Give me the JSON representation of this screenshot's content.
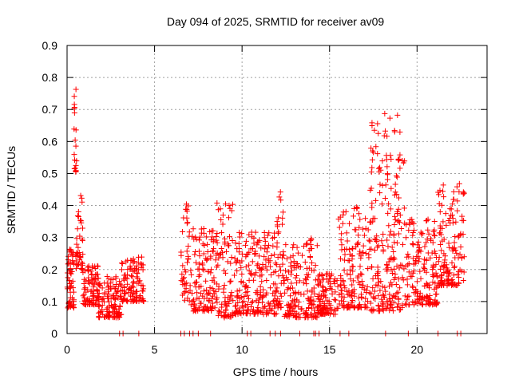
{
  "chart_data": {
    "type": "scatter",
    "title": "Day 094 of 2025, SRMTID for receiver av09",
    "xlabel": "GPS time / hours",
    "ylabel": "SRMTID / TECUs",
    "xlim": [
      0,
      24
    ],
    "ylim": [
      0,
      0.9
    ],
    "xticks": [
      0,
      5,
      10,
      15,
      20
    ],
    "yticks": [
      0,
      0.1,
      0.2,
      0.3,
      0.4,
      0.5,
      0.6,
      0.7,
      0.8,
      0.9
    ],
    "ytick_labels": [
      "0",
      "0.1",
      "0.2",
      "0.3",
      "0.4",
      "0.5",
      "0.6",
      "0.7",
      "0.8",
      "0.9"
    ],
    "grid": true,
    "marker": "+",
    "color": "#ff0000",
    "series": [
      {
        "name": "SRMTID",
        "segments": [
          {
            "x_start": 0.0,
            "x_end": 0.4,
            "y_min": 0.08,
            "y_max": 0.27,
            "count": 60
          },
          {
            "x_start": 0.4,
            "x_end": 0.55,
            "y_min": 0.5,
            "y_max": 0.81,
            "count": 20
          },
          {
            "x_start": 0.5,
            "x_end": 0.9,
            "y_min": 0.2,
            "y_max": 0.44,
            "count": 40
          },
          {
            "x_start": 0.9,
            "x_end": 1.8,
            "y_min": 0.09,
            "y_max": 0.22,
            "count": 90
          },
          {
            "x_start": 1.8,
            "x_end": 3.1,
            "y_min": 0.05,
            "y_max": 0.18,
            "count": 120
          },
          {
            "x_start": 3.1,
            "x_end": 4.4,
            "y_min": 0.1,
            "y_max": 0.24,
            "count": 110
          },
          {
            "x_start": 6.5,
            "x_end": 7.0,
            "y_min": 0.1,
            "y_max": 0.43,
            "count": 40
          },
          {
            "x_start": 7.0,
            "x_end": 8.5,
            "y_min": 0.07,
            "y_max": 0.33,
            "count": 130
          },
          {
            "x_start": 8.5,
            "x_end": 9.5,
            "y_min": 0.05,
            "y_max": 0.42,
            "count": 90
          },
          {
            "x_start": 9.5,
            "x_end": 12.0,
            "y_min": 0.06,
            "y_max": 0.32,
            "count": 220
          },
          {
            "x_start": 12.0,
            "x_end": 12.4,
            "y_min": 0.08,
            "y_max": 0.46,
            "count": 40
          },
          {
            "x_start": 12.4,
            "x_end": 14.3,
            "y_min": 0.05,
            "y_max": 0.3,
            "count": 160
          },
          {
            "x_start": 14.3,
            "x_end": 15.5,
            "y_min": 0.06,
            "y_max": 0.19,
            "count": 110
          },
          {
            "x_start": 15.5,
            "x_end": 17.3,
            "y_min": 0.08,
            "y_max": 0.4,
            "count": 150
          },
          {
            "x_start": 17.3,
            "x_end": 19.3,
            "y_min": 0.07,
            "y_max": 0.69,
            "count": 220
          },
          {
            "x_start": 19.3,
            "x_end": 21.2,
            "y_min": 0.09,
            "y_max": 0.36,
            "count": 170
          },
          {
            "x_start": 21.2,
            "x_end": 22.7,
            "y_min": 0.15,
            "y_max": 0.47,
            "count": 140
          }
        ]
      }
    ],
    "zero_markers_x": [
      3.0,
      3.2,
      4.1,
      6.5,
      6.7,
      7.0,
      7.2,
      7.5,
      8.2,
      10.3,
      10.5,
      11.6,
      11.9,
      12.2,
      13.3,
      14.1,
      14.2,
      14.4,
      15.6,
      16.1,
      18.2,
      19.5,
      21.2,
      22.3,
      22.5
    ]
  }
}
